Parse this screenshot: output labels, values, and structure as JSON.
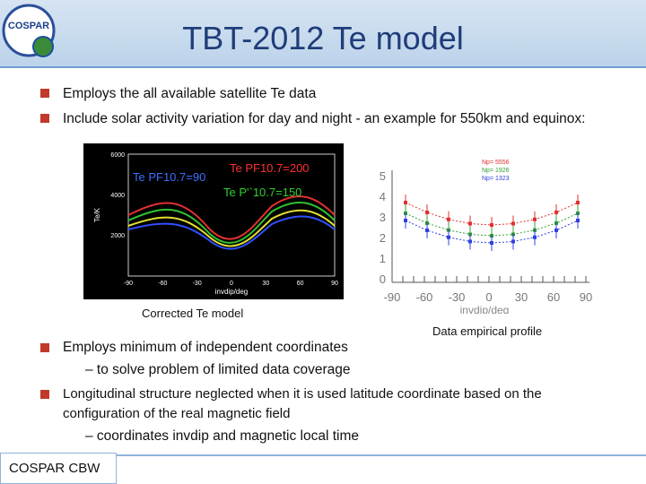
{
  "header": {
    "title": "TBT-2012 Te model",
    "logo": "COSPAR"
  },
  "bullets": [
    {
      "text": "Employs the all available satellite Te data"
    },
    {
      "text": "Include solar activity variation for day and night -  an example for 550km and equinox:"
    },
    {
      "text": "Employs minimum of independent coordinates",
      "sub": "– to solve problem of limited data coverage"
    },
    {
      "text": "Longitudinal structure neglected when it is used latitude coordinate based on the configuration of the real magnetic field",
      "sub": "– coordinates invdip and magnetic local time"
    }
  ],
  "figure_left": {
    "labels": [
      "Te PF10.7=90",
      "Te PF10.7=200",
      "Te P'`10.7=150"
    ],
    "y_axis_label": "Te/K",
    "x_axis_label": "invdip/deg",
    "yticks": [
      "6000",
      "4000",
      "2000"
    ],
    "xticks": [
      "-90",
      "-60",
      "-30",
      "0",
      "30",
      "60",
      "90"
    ],
    "caption": "Corrected Te model"
  },
  "figure_right": {
    "legend": [
      "Np= 5556",
      "Np= 1926",
      "Np= 1323"
    ],
    "x_axis_label": "invdip/deg",
    "yticks": [
      "5",
      "4",
      "3",
      "2",
      "1",
      "0"
    ],
    "xticks": [
      "-90",
      "-60",
      "-30",
      "0",
      "30",
      "60",
      "90"
    ],
    "caption": "Data empirical profile"
  },
  "footer": "COSPAR CBW"
}
